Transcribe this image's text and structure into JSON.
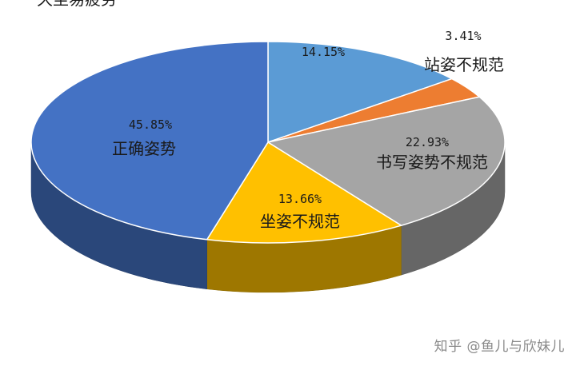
{
  "chart_data": {
    "type": "pie",
    "style": "3d",
    "title": "",
    "legend": "none",
    "slices": [
      {
        "label": "久坐易疲劳",
        "value": 14.15,
        "value_text": "14.15%",
        "color": "#5b9bd5"
      },
      {
        "label": "站姿不规范",
        "value": 3.41,
        "value_text": "3.41%",
        "color": "#ed7d31"
      },
      {
        "label": "书写姿势不规范",
        "value": 22.93,
        "value_text": "22.93%",
        "color": "#a5a5a5"
      },
      {
        "label": "坐姿不规范",
        "value": 13.66,
        "value_text": "13.66%",
        "color": "#ffc000"
      },
      {
        "label": "正确姿势",
        "value": 45.85,
        "value_text": "45.85%",
        "color": "#4472c4"
      }
    ]
  },
  "watermark": "知乎 @鱼儿与欣妹儿"
}
